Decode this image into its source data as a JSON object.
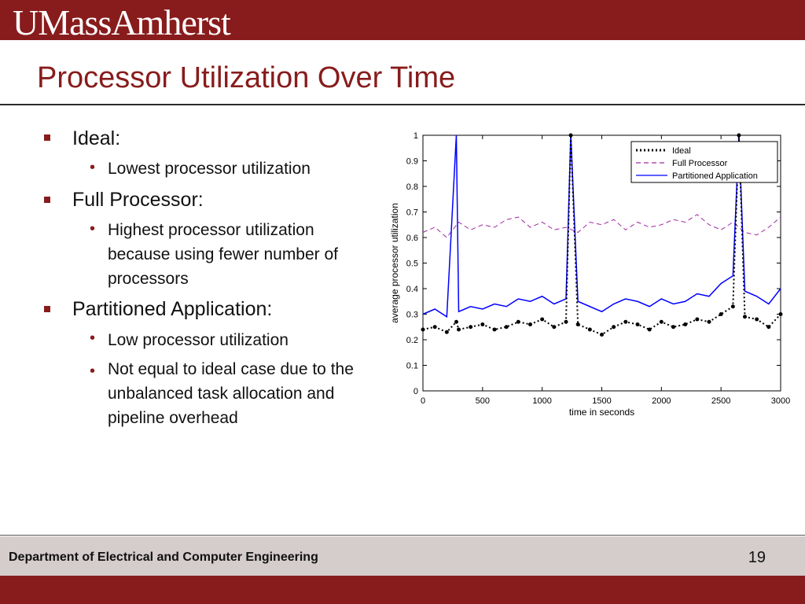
{
  "header": {
    "logo_text": "UMassAmherst"
  },
  "slide": {
    "title": "Processor Utilization Over Time",
    "bullets": [
      {
        "label": "Ideal:",
        "sub": [
          "Lowest processor utilization"
        ]
      },
      {
        "label": "Full Processor:",
        "sub": [
          "Highest processor utilization because using fewer number of processors"
        ]
      },
      {
        "label": "Partitioned Application:",
        "sub": [
          "Low processor utilization",
          "Not equal to ideal case due to the unbalanced task allocation and pipeline overhead"
        ]
      }
    ]
  },
  "footer": {
    "department": "Department of Electrical and Computer Engineering",
    "page_number": "19"
  },
  "colors": {
    "brand": "#881c1c",
    "footer_bg": "#d5cccc",
    "ideal": "#000000",
    "full_processor": "#a02aa0",
    "partitioned": "#0000ff"
  },
  "chart_data": {
    "type": "line",
    "xlabel": "time in seconds",
    "ylabel": "average processor utilization",
    "xlim": [
      0,
      3000
    ],
    "ylim": [
      0,
      1
    ],
    "xticks": [
      "0",
      "500",
      "1000",
      "1500",
      "2000",
      "2500",
      "3000"
    ],
    "yticks": [
      "0",
      "0.1",
      "0.2",
      "0.3",
      "0.4",
      "0.5",
      "0.6",
      "0.7",
      "0.8",
      "0.9",
      "1"
    ],
    "legend_position": "top-right",
    "series": [
      {
        "name": "Ideal",
        "style": "dotted-markers",
        "x": [
          0,
          100,
          200,
          280,
          300,
          400,
          500,
          600,
          700,
          800,
          900,
          1000,
          1100,
          1200,
          1240,
          1300,
          1400,
          1500,
          1600,
          1700,
          1800,
          1900,
          2000,
          2100,
          2200,
          2300,
          2400,
          2500,
          2600,
          2650,
          2700,
          2800,
          2900,
          3000
        ],
        "y": [
          0.24,
          0.25,
          0.23,
          0.27,
          0.24,
          0.25,
          0.26,
          0.24,
          0.25,
          0.27,
          0.26,
          0.28,
          0.25,
          0.27,
          1.0,
          0.26,
          0.24,
          0.22,
          0.25,
          0.27,
          0.26,
          0.24,
          0.27,
          0.25,
          0.26,
          0.28,
          0.27,
          0.3,
          0.33,
          1.0,
          0.29,
          0.28,
          0.25,
          0.3
        ]
      },
      {
        "name": "Full Processor",
        "style": "dashed",
        "x": [
          0,
          100,
          200,
          300,
          400,
          500,
          600,
          700,
          800,
          900,
          1000,
          1100,
          1200,
          1300,
          1400,
          1500,
          1600,
          1700,
          1800,
          1900,
          2000,
          2100,
          2200,
          2300,
          2400,
          2500,
          2600,
          2700,
          2800,
          2900,
          3000
        ],
        "y": [
          0.62,
          0.64,
          0.6,
          0.66,
          0.63,
          0.65,
          0.64,
          0.67,
          0.68,
          0.64,
          0.66,
          0.63,
          0.64,
          0.62,
          0.66,
          0.65,
          0.67,
          0.63,
          0.66,
          0.64,
          0.65,
          0.67,
          0.66,
          0.69,
          0.65,
          0.63,
          0.66,
          0.62,
          0.61,
          0.64,
          0.68
        ]
      },
      {
        "name": "Partitioned Application",
        "style": "solid",
        "x": [
          0,
          100,
          200,
          280,
          300,
          400,
          500,
          600,
          700,
          800,
          900,
          1000,
          1100,
          1200,
          1240,
          1300,
          1400,
          1500,
          1600,
          1700,
          1800,
          1900,
          2000,
          2100,
          2200,
          2300,
          2400,
          2500,
          2600,
          2650,
          2700,
          2800,
          2900,
          3000
        ],
        "y": [
          0.3,
          0.32,
          0.29,
          1.0,
          0.31,
          0.33,
          0.32,
          0.34,
          0.33,
          0.36,
          0.35,
          0.37,
          0.34,
          0.36,
          1.0,
          0.35,
          0.33,
          0.31,
          0.34,
          0.36,
          0.35,
          0.33,
          0.36,
          0.34,
          0.35,
          0.38,
          0.37,
          0.42,
          0.45,
          1.0,
          0.39,
          0.37,
          0.34,
          0.4
        ]
      }
    ]
  }
}
